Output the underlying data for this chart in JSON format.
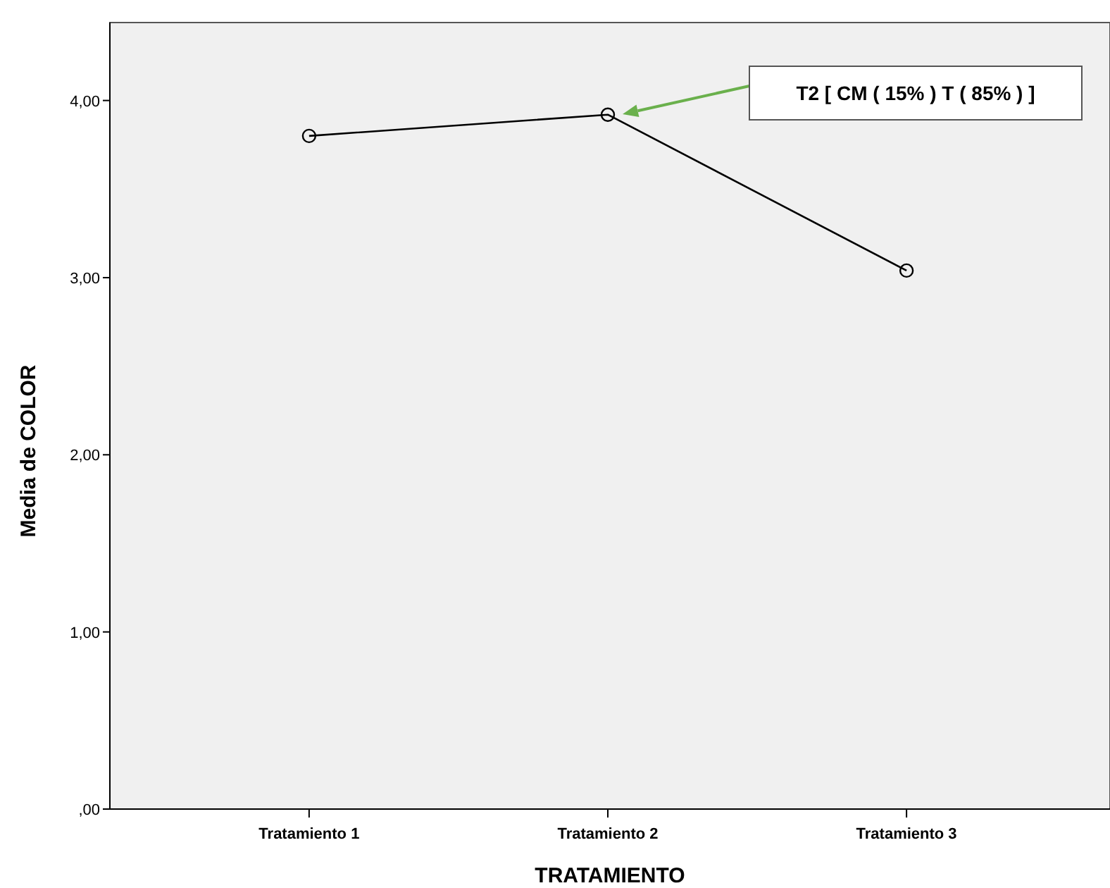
{
  "chart_data": {
    "type": "line",
    "xlabel": "TRATAMIENTO",
    "ylabel": "Media de COLOR",
    "categories": [
      "Tratamiento 1",
      "Tratamiento 2",
      "Tratamiento 3"
    ],
    "series": [
      {
        "color": "#000000",
        "values": [
          3.8,
          3.92,
          3.04
        ]
      }
    ],
    "marker": "circle",
    "ylim": [
      0,
      4.44
    ],
    "yticks": [
      {
        "value": 0,
        "label": ",00"
      },
      {
        "value": 1,
        "label": "1,00"
      },
      {
        "value": 2,
        "label": "2,00"
      },
      {
        "value": 3,
        "label": "3,00"
      },
      {
        "value": 4,
        "label": "4,00"
      }
    ],
    "annotations": [
      "T2 [ CM ( 15% ) T ( 85% ) ]"
    ]
  }
}
